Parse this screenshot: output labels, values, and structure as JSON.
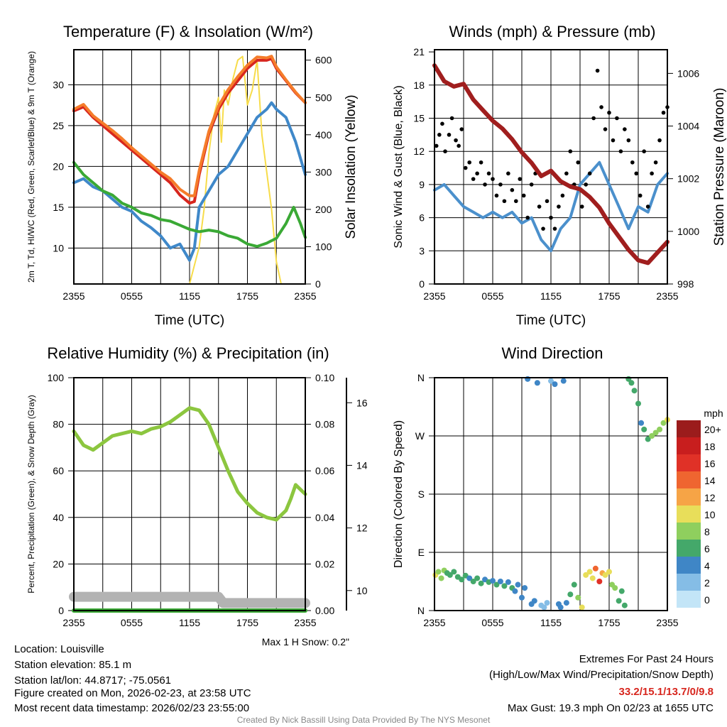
{
  "chart_data": [
    {
      "type": "line",
      "title": "Temperature (F) & Insolation (W/m²)",
      "xlabel": "Time (UTC)",
      "ylabel": "2m T, Td, HI/WC (Red, Green, Scarlet/Blue) & 9m T (Orange)",
      "ylabel_right": "Solar Insolation (Yellow)",
      "xticks": [
        "2355",
        "0555",
        "1155",
        "1755",
        "2355"
      ],
      "yticks": [
        "10",
        "15",
        "20",
        "25",
        "30"
      ],
      "yticks_right": [
        "0",
        "100",
        "200",
        "300",
        "400",
        "500",
        "600"
      ],
      "ylim": [
        5.6,
        34.3
      ],
      "ylim_right": [
        0,
        628
      ],
      "xlim_hours": [
        0,
        24
      ],
      "series": [
        {
          "name": "9m T",
          "axis": "left",
          "color": "#f57c2a",
          "x": [
            0,
            1,
            2,
            3,
            4,
            5,
            6,
            7,
            8,
            9,
            10,
            11,
            12,
            12.5,
            13,
            14,
            15,
            16,
            17,
            18,
            19,
            20,
            20.5,
            21,
            22,
            23,
            24
          ],
          "values": [
            27,
            27.6,
            26.2,
            25.3,
            24.4,
            23.4,
            22.3,
            21.3,
            20.3,
            19.3,
            18.5,
            17.2,
            16.4,
            16.4,
            19.5,
            24.3,
            27.4,
            29.4,
            31,
            32.4,
            33.4,
            33.3,
            33.5,
            32.2,
            30.6,
            29.1,
            27.8
          ]
        },
        {
          "name": "2m T",
          "axis": "left",
          "color": "#d7261e",
          "x": [
            0,
            1,
            2,
            3,
            4,
            5,
            6,
            7,
            8,
            9,
            10,
            11,
            12,
            12.5,
            13,
            14,
            15,
            16,
            17,
            18,
            19,
            20,
            20.5,
            21,
            22,
            23,
            24
          ],
          "values": [
            26.8,
            27.3,
            26,
            25,
            24,
            23,
            22,
            21,
            20,
            19,
            18,
            16.5,
            15.5,
            15.7,
            19,
            24,
            27,
            29,
            30.5,
            32,
            33,
            33,
            33.2,
            32,
            30.5,
            29,
            27.8
          ]
        },
        {
          "name": "Dew point",
          "axis": "left",
          "color": "#3aa935",
          "x": [
            0,
            1,
            2,
            3,
            4,
            5,
            6,
            7,
            8,
            9,
            10,
            11,
            12,
            13,
            14,
            15,
            16,
            17,
            18,
            19,
            20,
            21,
            22,
            22.8,
            23.5,
            24
          ],
          "values": [
            20.5,
            19,
            18,
            17,
            16.5,
            15.5,
            15,
            14.3,
            14,
            13.5,
            13.3,
            12.8,
            12.3,
            12,
            12.2,
            12,
            11.5,
            11.2,
            10.5,
            10.2,
            10.6,
            11.2,
            13,
            15,
            13,
            11.3
          ]
        },
        {
          "name": "Wind chill",
          "axis": "left",
          "color": "#3f88c9",
          "x": [
            0,
            1,
            2,
            3,
            4,
            5,
            6,
            7,
            8,
            9,
            10,
            11,
            12,
            12.5,
            13,
            14,
            15,
            16,
            17,
            18,
            19,
            20,
            20.5,
            21,
            22,
            23,
            24
          ],
          "values": [
            18,
            18.5,
            17.5,
            17,
            16,
            15,
            14.5,
            13.3,
            12.5,
            11.5,
            10,
            10.5,
            8.5,
            10,
            15,
            17,
            19,
            20,
            22,
            24,
            26,
            27,
            27.8,
            27,
            26,
            23,
            19
          ]
        },
        {
          "name": "Solar insolation",
          "axis": "right",
          "color": "#f7dc4a",
          "x": [
            0,
            12,
            13,
            13.5,
            14,
            14.5,
            15,
            15.3,
            15.6,
            16,
            16.5,
            17,
            17.5,
            18,
            18.5,
            19,
            19.5,
            20,
            20.5,
            21,
            21.5,
            24
          ],
          "values": [
            0,
            0,
            100,
            200,
            350,
            450,
            500,
            380,
            520,
            480,
            550,
            600,
            610,
            480,
            520,
            600,
            400,
            300,
            200,
            60,
            0,
            0
          ]
        }
      ]
    },
    {
      "type": "line",
      "title": "Winds (mph) & Pressure (mb)",
      "xlabel": "Time (UTC)",
      "ylabel": "Sonic Wind & Gust (Blue, Black)",
      "ylabel_right": "Station Pressure (Maroon)",
      "xticks": [
        "2355",
        "0555",
        "1155",
        "1755",
        "2355"
      ],
      "yticks": [
        "0",
        "3",
        "6",
        "9",
        "12",
        "15",
        "18",
        "21"
      ],
      "yticks_right": [
        "998",
        "1000",
        "1002",
        "1004",
        "1006"
      ],
      "ylim": [
        0,
        21.2
      ],
      "ylim_right": [
        998,
        1006.9
      ],
      "series": [
        {
          "name": "Sonic wind",
          "axis": "left",
          "kind": "line",
          "color": "#4b90cc",
          "x": [
            0,
            1,
            2,
            3,
            4,
            5,
            6,
            7,
            8,
            9,
            10,
            11,
            12,
            13,
            14,
            15,
            16,
            17,
            18,
            19,
            20,
            21,
            22,
            23,
            24
          ],
          "values": [
            8.5,
            9,
            8,
            7,
            6.5,
            6,
            6.5,
            6,
            6.5,
            5.5,
            6,
            4,
            3,
            5,
            6,
            9,
            10,
            11,
            9,
            7,
            5,
            7,
            6.5,
            9,
            10
          ]
        },
        {
          "name": "Gust",
          "axis": "left",
          "kind": "scatter",
          "color": "#000000",
          "x": [
            0.2,
            0.5,
            0.8,
            1.1,
            1.5,
            1.8,
            2.2,
            2.5,
            2.8,
            3.2,
            3.6,
            4,
            4.4,
            4.8,
            5.2,
            5.6,
            6,
            6.4,
            6.8,
            7.2,
            7.6,
            8,
            8.4,
            8.8,
            9.2,
            9.6,
            10,
            10.4,
            10.8,
            11.2,
            11.6,
            12,
            12.4,
            12.8,
            13.2,
            13.6,
            14,
            14.4,
            14.8,
            15.2,
            15.6,
            16,
            16.4,
            16.8,
            17.2,
            17.6,
            18,
            18.4,
            18.8,
            19.2,
            19.6,
            20,
            20.4,
            20.8,
            21.2,
            21.6,
            22,
            22.4,
            22.8,
            23.2,
            23.6,
            24
          ],
          "values": [
            12.5,
            13.5,
            14.5,
            12,
            13.5,
            15,
            13,
            12.5,
            14,
            10.5,
            11,
            9.5,
            10,
            11,
            9,
            10,
            9.5,
            8,
            9,
            7.5,
            10,
            8.5,
            7.5,
            9.5,
            8,
            6,
            9,
            10,
            7,
            5,
            7.5,
            6,
            5,
            7,
            8,
            10,
            12,
            9,
            11,
            7,
            9,
            10,
            15,
            19.3,
            16,
            14,
            15.5,
            13,
            15,
            12,
            14,
            13,
            11,
            10,
            8,
            12,
            7,
            10,
            11,
            13,
            15.5,
            16
          ]
        },
        {
          "name": "Station pressure",
          "axis": "right",
          "kind": "line",
          "color": "#a01e1e",
          "x": [
            0,
            1,
            2,
            3,
            4,
            5,
            6,
            7,
            8,
            9,
            10,
            11,
            12,
            13,
            14,
            15,
            16,
            17,
            18,
            19,
            20,
            21,
            22,
            23,
            24
          ],
          "values": [
            1006.3,
            1005.7,
            1005.5,
            1005.6,
            1005.0,
            1004.6,
            1004.2,
            1003.9,
            1003.5,
            1003.0,
            1002.6,
            1002.1,
            1002.3,
            1001.9,
            1001.7,
            1001.6,
            1001.3,
            1000.9,
            1000.3,
            999.8,
            999.3,
            998.9,
            998.8,
            999.2,
            999.6
          ]
        }
      ]
    },
    {
      "type": "line",
      "title": "Relative Humidity (%) & Precipitation (in)",
      "ylabel": "Percent, Precipitation (Green), & Snow Depth (Gray)",
      "xticks": [
        "2355",
        "0555",
        "1155",
        "1755",
        "2355"
      ],
      "yticks": [
        "0",
        "20",
        "40",
        "60",
        "80",
        "100"
      ],
      "yticks_right": [
        "0.00",
        "0.02",
        "0.04",
        "0.06",
        "0.08",
        "0.10"
      ],
      "yticks_far_right": [
        "10",
        "12",
        "14",
        "16"
      ],
      "ylim": [
        0,
        100
      ],
      "ylim_right": [
        0,
        0.1
      ],
      "ylim_far_right": [
        9.36,
        16.8
      ],
      "note": "Max 1 H Snow: 0.2\"",
      "series": [
        {
          "name": "Snow depth",
          "axis": "far_right",
          "color": "#b3b3b3",
          "x": [
            0,
            4,
            8,
            12,
            15,
            15.5,
            24
          ],
          "values": [
            9.8,
            9.8,
            9.8,
            9.8,
            9.8,
            9.6,
            9.6
          ]
        },
        {
          "name": "Relative humidity",
          "axis": "left",
          "color": "#8cc63f",
          "x": [
            0,
            1,
            2,
            3,
            4,
            5,
            6,
            7,
            8,
            9,
            10,
            11,
            12,
            13,
            14,
            15,
            16,
            17,
            18,
            19,
            20,
            21,
            22,
            22.5,
            23,
            24
          ],
          "values": [
            77,
            71,
            69,
            72,
            75,
            76,
            77,
            76,
            78,
            79,
            81,
            84,
            87,
            86,
            80,
            70,
            60,
            51,
            46,
            42,
            40,
            39,
            43,
            48,
            54,
            50
          ]
        },
        {
          "name": "Precipitation",
          "axis": "right",
          "color": "#3aa935",
          "x": [
            0,
            24
          ],
          "values": [
            0,
            0
          ]
        }
      ]
    },
    {
      "type": "scatter",
      "title": "Wind Direction",
      "ylabel": "Direction (Colored By Speed)",
      "xticks": [
        "2355",
        "0555",
        "1155",
        "1755",
        "2355"
      ],
      "yticks": [
        "N",
        "E",
        "S",
        "W",
        "N"
      ],
      "ylim": [
        0,
        360
      ],
      "legend": {
        "title": "mph",
        "labels": [
          "20+",
          "18",
          "16",
          "14",
          "12",
          "10",
          "8",
          "6",
          "4",
          "2",
          "0"
        ],
        "colors": [
          "#9b1c1c",
          "#c81e1e",
          "#e03127",
          "#ef6530",
          "#f6a446",
          "#e8de5a",
          "#8fcf5e",
          "#44a86a",
          "#3f86c6",
          "#85bde6",
          "#c3e5f7"
        ],
        "placement": "right"
      },
      "points": {
        "x": [
          0.1,
          0.4,
          0.7,
          1,
          1.3,
          1.6,
          2,
          2.4,
          2.8,
          3.2,
          3.6,
          4,
          4.4,
          4.8,
          5.2,
          5.6,
          6,
          6.4,
          6.8,
          7.2,
          7.6,
          8,
          8.3,
          8.6,
          9,
          9.3,
          9.6,
          10,
          10.3,
          10.6,
          11,
          11.3,
          11.6,
          12,
          12.4,
          12.8,
          13,
          13.3,
          13.6,
          14,
          14.4,
          14.8,
          15.2,
          15.6,
          16,
          16.3,
          16.6,
          17,
          17.3,
          17.6,
          18,
          18.3,
          18.6,
          19,
          19.3,
          19.6,
          20,
          20.3,
          20.6,
          21,
          21.3,
          21.6,
          22,
          22.4,
          22.8,
          23.2,
          23.6,
          24
        ],
        "deg": [
          55,
          60,
          50,
          62,
          58,
          55,
          60,
          52,
          48,
          54,
          50,
          45,
          50,
          42,
          48,
          44,
          46,
          40,
          45,
          38,
          44,
          35,
          30,
          40,
          20,
          35,
          358,
          10,
          15,
          352,
          8,
          5,
          12,
          355,
          350,
          10,
          5,
          355,
          12,
          25,
          40,
          20,
          5,
          55,
          60,
          50,
          65,
          45,
          58,
          55,
          60,
          40,
          35,
          15,
          30,
          8,
          358,
          352,
          340,
          320,
          290,
          280,
          265,
          270,
          275,
          280,
          290,
          295
        ],
        "speed": [
          10,
          9,
          8,
          8,
          6,
          7,
          6,
          6,
          6,
          6,
          5,
          6,
          6,
          6,
          5,
          6,
          5,
          6,
          5,
          6,
          5,
          6,
          5,
          4,
          5,
          4,
          4,
          4,
          4,
          4,
          3,
          3,
          3,
          3,
          4,
          4,
          4,
          4,
          4,
          6,
          6,
          9,
          10,
          11,
          10,
          11,
          14,
          16,
          12,
          10,
          11,
          9,
          8,
          7,
          7,
          6,
          6,
          6,
          6,
          6,
          4,
          6,
          7,
          8,
          8,
          8,
          9,
          10
        ]
      }
    }
  ],
  "footer": {
    "location": "Location: Louisville",
    "elevation": "Station elevation: 85.1 m",
    "latlon": "Station lat/lon: 44.8717; -75.0561",
    "created": "Figure created on Mon, 2026-02-23, at 23:58 UTC",
    "recent": "Most recent data timestamp: 2026/02/23 23:55:00",
    "extremes_title": "Extremes For Past 24 Hours",
    "extremes_sub": "(High/Low/Max Wind/Precipitation/Snow Depth)",
    "extremes_values": "33.2/15.1/13.7/0/9.8",
    "max_gust": "Max Gust: 19.3 mph On 02/23 at 1655 UTC",
    "credit": "Created By Nick Bassill Using Data Provided By The NYS Mesonet"
  },
  "colors": {
    "extremes": "#d7261e",
    "credit": "#888888"
  }
}
